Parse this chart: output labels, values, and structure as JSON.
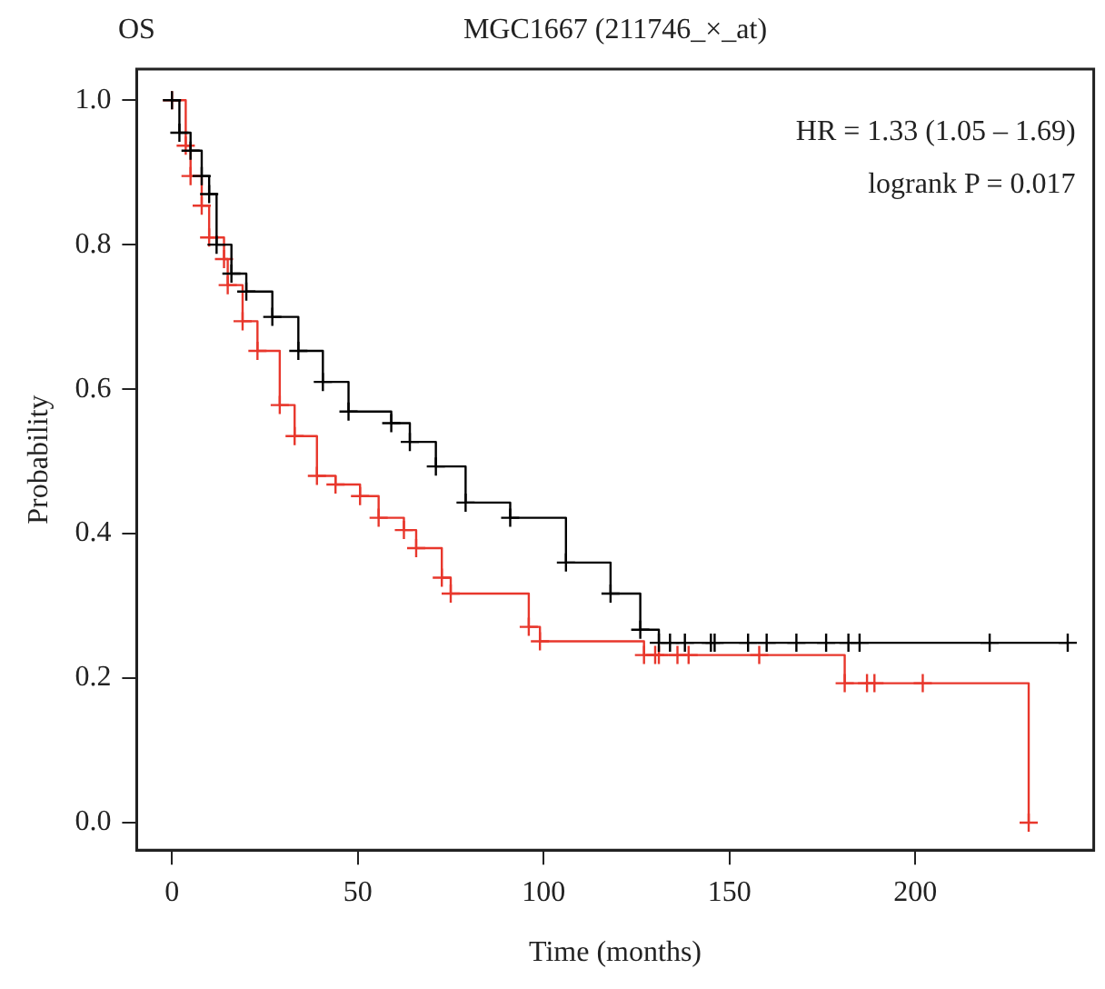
{
  "chart_data": {
    "type": "step",
    "title": "MGC1667 (211746_×_at)",
    "subtitle": "OS",
    "xlabel": "Time (months)",
    "ylabel": "Probability",
    "annotations": [
      "HR = 1.33 (1.05 – 1.69)",
      "logrank P = 0.017"
    ],
    "xlim": [
      -9.5,
      248
    ],
    "ylim": [
      -0.038,
      1.043
    ],
    "xticks": [
      0,
      50,
      100,
      150,
      200
    ],
    "yticks": [
      {
        "value": 0,
        "label": "0.0"
      },
      {
        "value": 0.2,
        "label": "0.2"
      },
      {
        "value": 0.4,
        "label": "0.4"
      },
      {
        "value": 0.6,
        "label": "0.6"
      },
      {
        "value": 0.8,
        "label": "0.8"
      },
      {
        "value": 1,
        "label": "1.0"
      }
    ],
    "grid": false,
    "legend": false,
    "marker": "cross",
    "line_style": "solid",
    "series": [
      {
        "color": "#000000",
        "x": [
          0,
          2,
          5,
          8,
          10,
          12,
          16,
          20,
          27,
          34,
          40.6,
          47.5,
          59,
          64,
          71,
          79,
          91,
          106,
          118,
          126,
          131,
          134,
          138,
          145,
          146,
          155,
          160,
          168,
          176,
          182,
          185,
          220,
          241
        ],
        "values": [
          1,
          0.955,
          0.93,
          0.895,
          0.87,
          0.8,
          0.76,
          0.735,
          0.7,
          0.653,
          0.61,
          0.569,
          0.553,
          0.527,
          0.493,
          0.443,
          0.422,
          0.36,
          0.317,
          0.267,
          0.249,
          0.249,
          0.249,
          0.249,
          0.249,
          0.249,
          0.249,
          0.249,
          0.249,
          0.249,
          0.249,
          0.249,
          0.249
        ]
      },
      {
        "color": "#e8372c",
        "x": [
          0,
          3.7,
          5,
          8,
          10,
          14,
          15,
          19,
          23,
          29,
          33,
          39,
          44,
          50.6,
          55.6,
          62.4,
          65.7,
          72.6,
          75,
          96,
          99,
          127,
          130,
          131,
          136,
          139,
          158,
          181,
          187,
          189,
          202,
          230.5
        ],
        "values": [
          1,
          0.937,
          0.895,
          0.854,
          0.81,
          0.78,
          0.744,
          0.694,
          0.653,
          0.578,
          0.535,
          0.48,
          0.468,
          0.452,
          0.422,
          0.405,
          0.38,
          0.339,
          0.317,
          0.271,
          0.251,
          0.232,
          0.232,
          0.232,
          0.232,
          0.232,
          0.232,
          0.193,
          0.193,
          0.193,
          0.193,
          0
        ]
      }
    ]
  }
}
